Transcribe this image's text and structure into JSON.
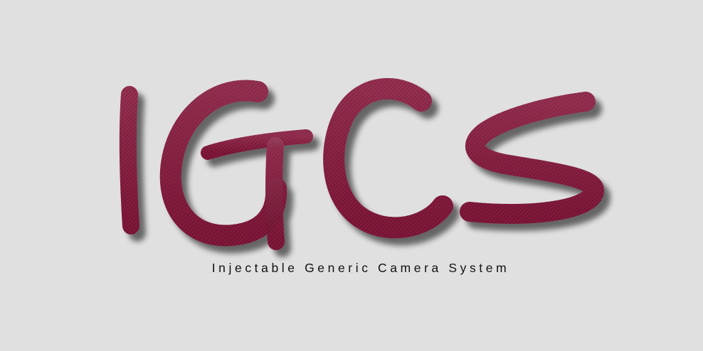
{
  "logo": {
    "wordmark": "IGCS",
    "tagline": "Injectable Generic Camera System"
  },
  "colors": {
    "background": "#e0e0e0",
    "letter_fill": "#8e1a40",
    "letter_stripe": "#6f1131",
    "shadow": "#555555",
    "tagline_text": "#111111"
  }
}
